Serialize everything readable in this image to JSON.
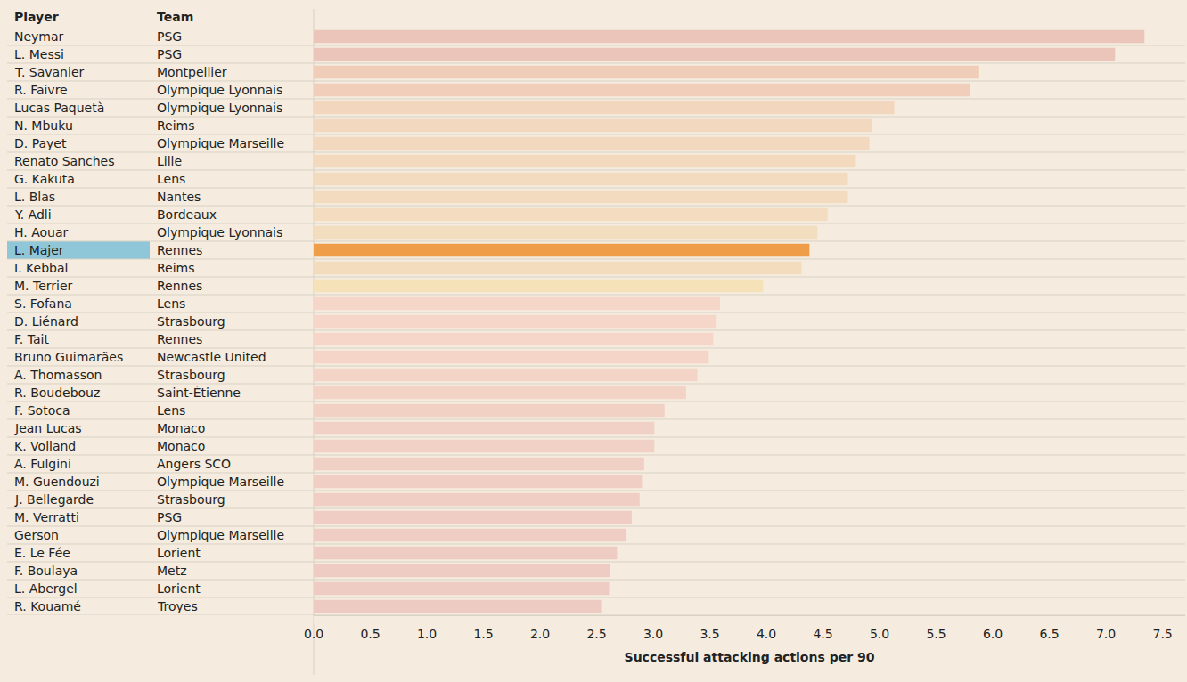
{
  "chart_data": {
    "type": "bar",
    "orientation": "horizontal",
    "column_labels": [
      "Player",
      "Team"
    ],
    "x_label": "Successful attacking actions per 90",
    "categories": [
      "Neymar",
      "L. Messi",
      "T. Savanier",
      "R. Faivre",
      "Lucas Paquetà",
      "N. Mbuku",
      "D. Payet",
      "Renato Sanches",
      "G. Kakuta",
      "L. Blas",
      "Y. Adli",
      "H. Aouar",
      "L. Majer",
      "I. Kebbal",
      "M. Terrier",
      "S. Fofana",
      "D. Liénard",
      "F. Tait",
      "Bruno Guimarães",
      "A. Thomasson",
      "R. Boudebouz",
      "F. Sotoca",
      "Jean Lucas",
      "K. Volland",
      "A. Fulgini",
      "M. Guendouzi",
      "J. Bellegarde",
      "M. Verratti",
      "Gerson",
      "E. Le Fée",
      "F. Boulaya",
      "L. Abergel",
      "R. Kouamé"
    ],
    "teams": [
      "PSG",
      "PSG",
      "Montpellier",
      "Olympique Lyonnais",
      "Olympique Lyonnais",
      "Reims",
      "Olympique Marseille",
      "Lille",
      "Lens",
      "Nantes",
      "Bordeaux",
      "Olympique Lyonnais",
      "Rennes",
      "Reims",
      "Rennes",
      "Lens",
      "Strasbourg",
      "Rennes",
      "Newcastle United",
      "Strasbourg",
      "Saint-Étienne",
      "Lens",
      "Monaco",
      "Monaco",
      "Angers SCO",
      "Olympique Marseille",
      "Strasbourg",
      "PSG",
      "Olympique Marseille",
      "Lorient",
      "Metz",
      "Lorient",
      "Troyes"
    ],
    "values": [
      7.34,
      7.08,
      5.88,
      5.8,
      5.13,
      4.93,
      4.91,
      4.79,
      4.72,
      4.72,
      4.54,
      4.45,
      4.38,
      4.31,
      3.97,
      3.59,
      3.56,
      3.53,
      3.49,
      3.39,
      3.29,
      3.1,
      3.01,
      3.01,
      2.92,
      2.9,
      2.88,
      2.81,
      2.76,
      2.68,
      2.62,
      2.61,
      2.54
    ],
    "colors": [
      "#ebc4ba",
      "#ebc4ba",
      "#f0cdb9",
      "#f0ceb9",
      "#f2d6bd",
      "#f2d8be",
      "#f2d8be",
      "#f3d9be",
      "#f3dbbf",
      "#f3dbbf",
      "#f3dcbf",
      "#f3ddbf",
      "#f09d4a",
      "#f3dcbd",
      "#f5e2b8",
      "#f5d6c9",
      "#f5d6c9",
      "#f5d6c9",
      "#f4d5c8",
      "#f4d4c7",
      "#f3d3c6",
      "#f2d1c5",
      "#f1d0c5",
      "#f1d0c5",
      "#f0cfc5",
      "#f0cec4",
      "#f0cec4",
      "#efcdc4",
      "#efcdc4",
      "#eeccc3",
      "#eecbc3",
      "#eecbc3",
      "#edcac2"
    ],
    "xlim": [
      0,
      7.7
    ],
    "xticks": [
      {
        "value": 0,
        "label": "0.0"
      },
      0.5,
      {
        "value": 1,
        "label": "1.0"
      },
      1.5,
      {
        "value": 2,
        "label": "2.0"
      },
      2.5,
      {
        "value": 3,
        "label": "3.0"
      },
      3.5,
      {
        "value": 4,
        "label": "4.0"
      },
      4.5,
      {
        "value": 5,
        "label": "5.0"
      },
      5.5,
      {
        "value": 6,
        "label": "6.0"
      },
      6.5,
      {
        "value": 7,
        "label": "7.0"
      },
      7.5
    ],
    "grid": false
  }
}
